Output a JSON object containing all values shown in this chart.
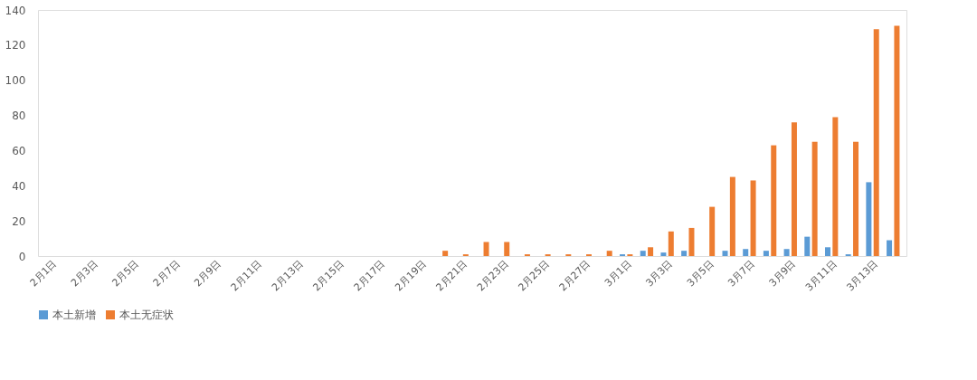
{
  "chart_data": {
    "type": "bar",
    "categories": [
      "2月1日",
      null,
      "2月3日",
      null,
      "2月5日",
      null,
      "2月7日",
      null,
      "2月9日",
      null,
      "2月11日",
      null,
      "2月13日",
      null,
      "2月15日",
      null,
      "2月17日",
      null,
      "2月19日",
      null,
      "2月21日",
      null,
      "2月23日",
      null,
      "2月25日",
      null,
      "2月27日",
      null,
      "3月1日",
      null,
      "3月3日",
      null,
      "3月5日",
      null,
      "3月7日",
      null,
      "3月9日",
      null,
      "3月11日",
      null,
      "3月13日",
      null
    ],
    "series": [
      {
        "name": "本土新增",
        "color": "#5b9bd5",
        "values": [
          0,
          0,
          0,
          0,
          0,
          0,
          0,
          0,
          0,
          0,
          0,
          0,
          0,
          0,
          0,
          0,
          0,
          0,
          0,
          0,
          0,
          0,
          0,
          0,
          0,
          0,
          0,
          0,
          1,
          3,
          2,
          3,
          0,
          3,
          4,
          3,
          4,
          11,
          5,
          1,
          42,
          9
        ]
      },
      {
        "name": "本土无症状",
        "color": "#ed7d31",
        "values": [
          0,
          0,
          0,
          0,
          0,
          0,
          0,
          0,
          0,
          0,
          0,
          0,
          0,
          0,
          0,
          0,
          0,
          0,
          0,
          3,
          1,
          8,
          8,
          1,
          1,
          1,
          1,
          3,
          1,
          5,
          14,
          16,
          28,
          45,
          43,
          63,
          76,
          65,
          79,
          65,
          129,
          131
        ]
      }
    ],
    "ylim": [
      0,
      140
    ],
    "yticks": [
      0,
      20,
      40,
      60,
      80,
      100,
      120,
      140
    ],
    "grid": false,
    "legend": "bottom"
  }
}
